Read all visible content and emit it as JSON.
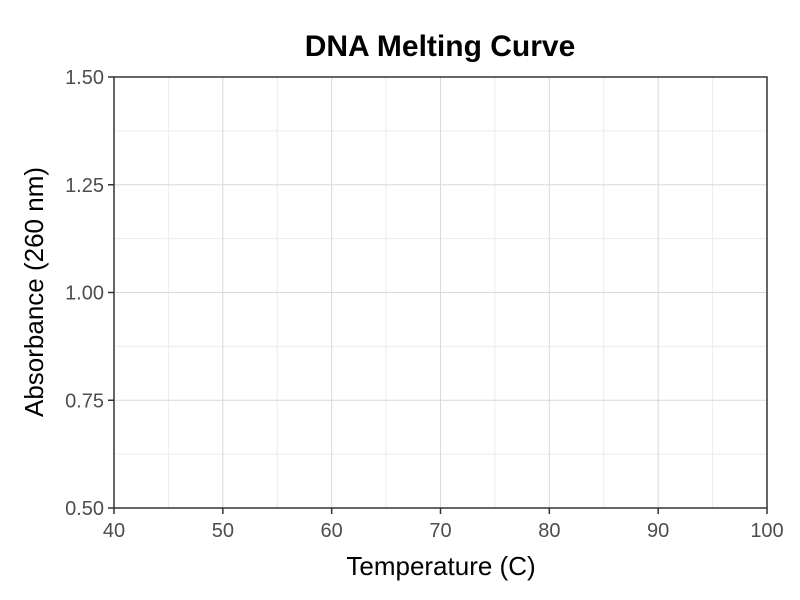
{
  "chart_data": {
    "type": "line",
    "title": "DNA Melting Curve",
    "xlabel": "Temperature (C)",
    "ylabel": "Absorbance (260 nm)",
    "xlim": [
      40,
      100
    ],
    "ylim": [
      0.5,
      1.5
    ],
    "x_ticks": [
      40,
      50,
      60,
      70,
      80,
      90,
      100
    ],
    "x_tick_labels": [
      "40",
      "50",
      "60",
      "70",
      "80",
      "90",
      "100"
    ],
    "y_ticks": [
      0.5,
      0.75,
      1.0,
      1.25,
      1.5
    ],
    "y_tick_labels": [
      "0.50",
      "0.75",
      "1.00",
      "1.25",
      "1.50"
    ],
    "grid": true,
    "series": []
  }
}
